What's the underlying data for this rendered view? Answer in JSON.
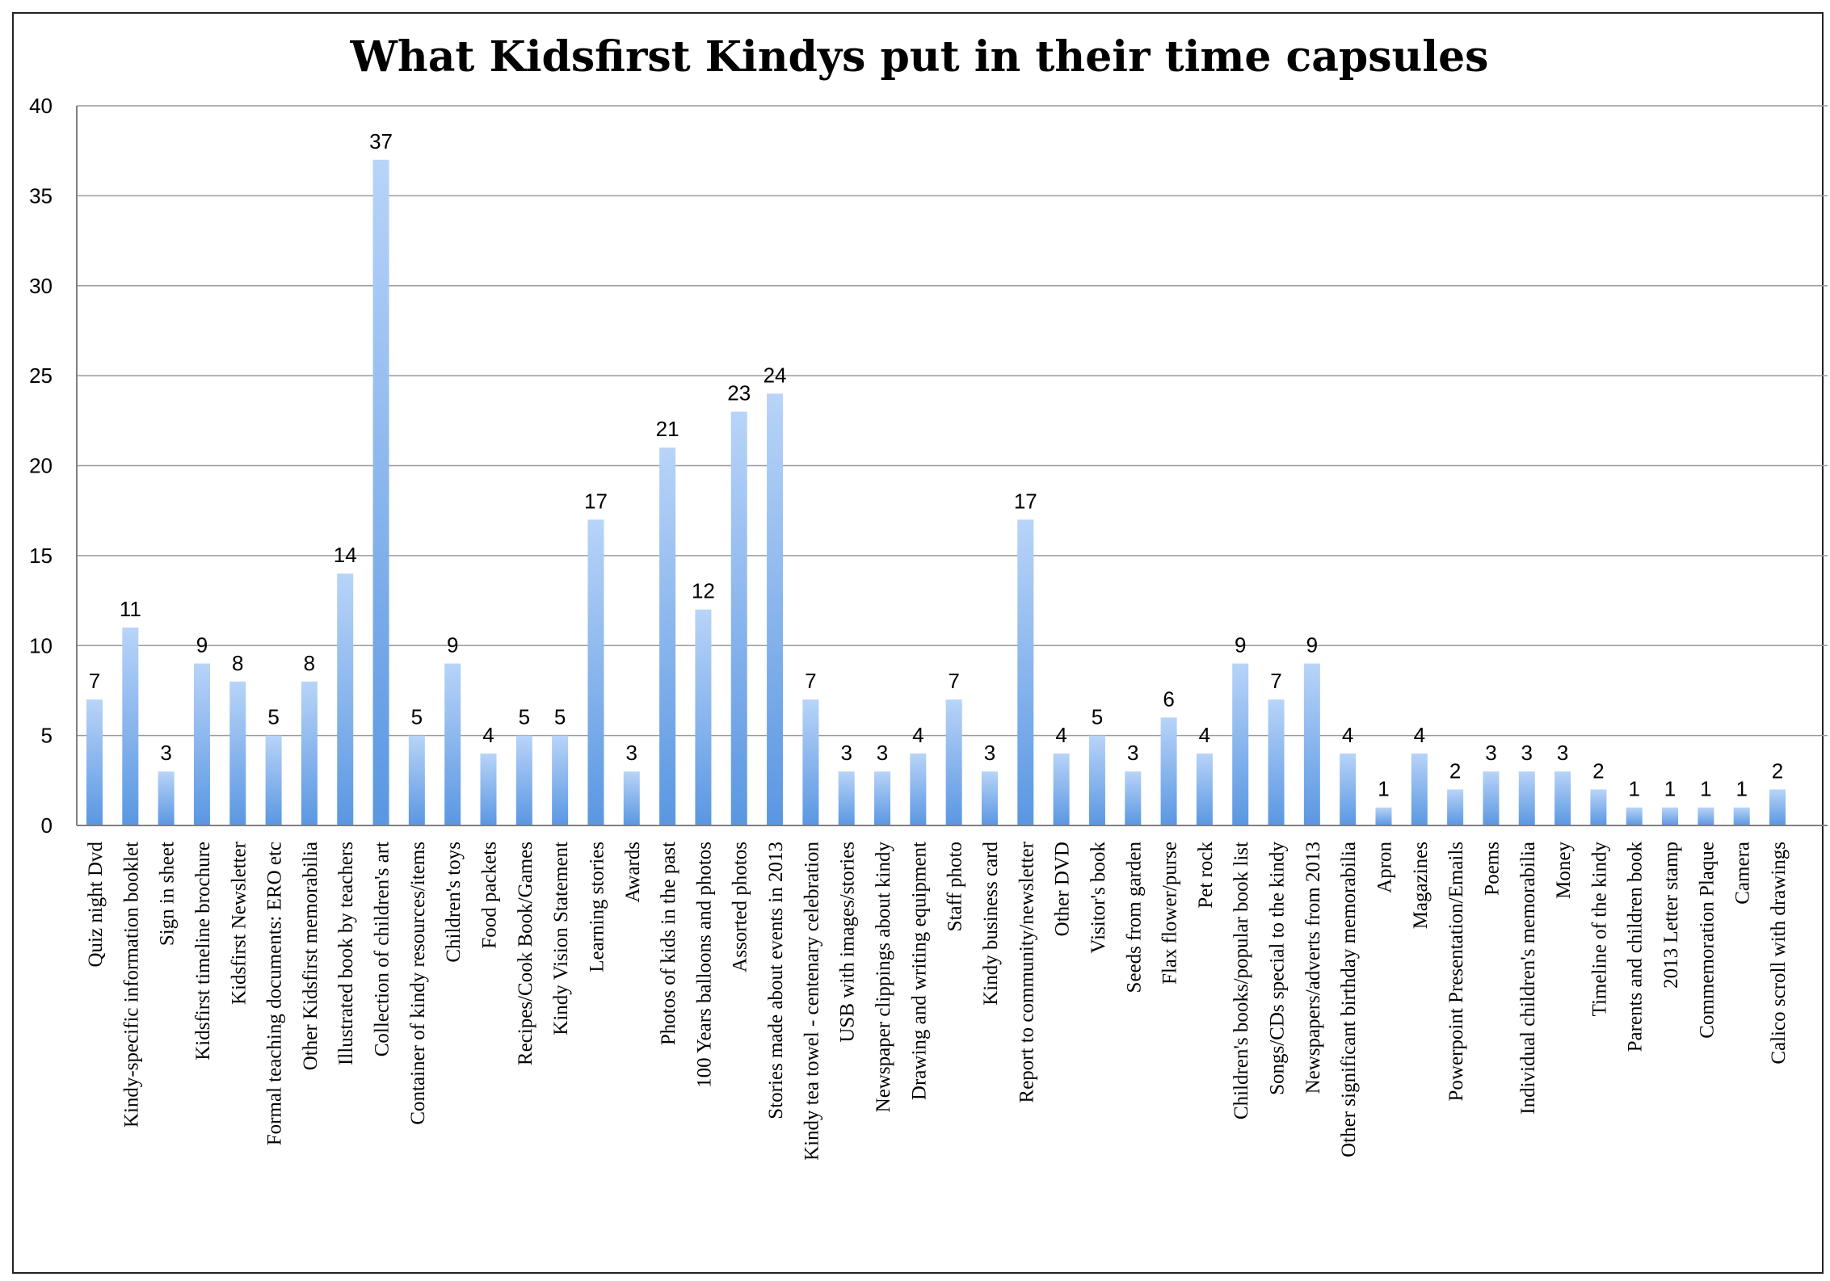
{
  "chart_data": {
    "type": "bar",
    "title": "What Kidsfirst Kindys put in their time capsules",
    "xlabel": "",
    "ylabel": "",
    "ylim": [
      0,
      40
    ],
    "yticks": [
      0,
      5,
      10,
      15,
      20,
      25,
      30,
      35,
      40
    ],
    "grid": true,
    "legend": "none",
    "bar_color_top": "#b8d4f8",
    "bar_color_bottom": "#5a97e2",
    "categories": [
      "Quiz night Dvd",
      "Kindy-specific information booklet",
      "Sign in sheet",
      "Kidsfirst timeline brochure",
      "Kidsfirst Newsletter",
      "Formal teaching documents: ERO etc",
      "Other Kidsfirst memorabilia",
      "Illustrated book by teachers",
      "Collection of children's art",
      "Container of kindy resources/items",
      "Children's toys",
      "Food packets",
      "Recipes/Cook Book/Games",
      "Kindy Vision Statement",
      "Learning stories",
      "Awards",
      "Photos of kids in the past",
      "100 Years balloons and photos",
      "Assorted photos",
      "Stories made about events in 2013",
      "Kindy tea towel - centenary celebration",
      "USB with images/stories",
      "Newspaper clippings about kindy",
      "Drawing and writing equipment",
      "Staff photo",
      "Kindy business card",
      "Report to community/newsletter",
      "Other DVD",
      "Visitor's book",
      "Seeds from garden",
      "Flax flower/purse",
      "Pet rock",
      "Children's books/popular book list",
      "Songs/CDs special to the kindy",
      "Newspapers/adverts from 2013",
      "Other significant birthday memorabilia",
      "Apron",
      "Magazines",
      "Powerpoint Presentation/Emails",
      "Poems",
      "Individual children's memorabilia",
      "Money",
      "Timeline of the kindy",
      "Parents and children book",
      "2013 Letter stamp",
      "Commemoration Plaque",
      "Camera",
      "Calico scroll with drawings"
    ],
    "values": [
      7,
      11,
      3,
      9,
      8,
      5,
      8,
      14,
      37,
      5,
      9,
      4,
      5,
      5,
      17,
      3,
      21,
      12,
      23,
      24,
      7,
      3,
      3,
      4,
      7,
      3,
      17,
      4,
      5,
      3,
      6,
      4,
      9,
      7,
      9,
      4,
      1,
      4,
      2,
      3,
      3,
      3,
      2,
      1,
      1,
      1,
      1,
      2
    ]
  }
}
